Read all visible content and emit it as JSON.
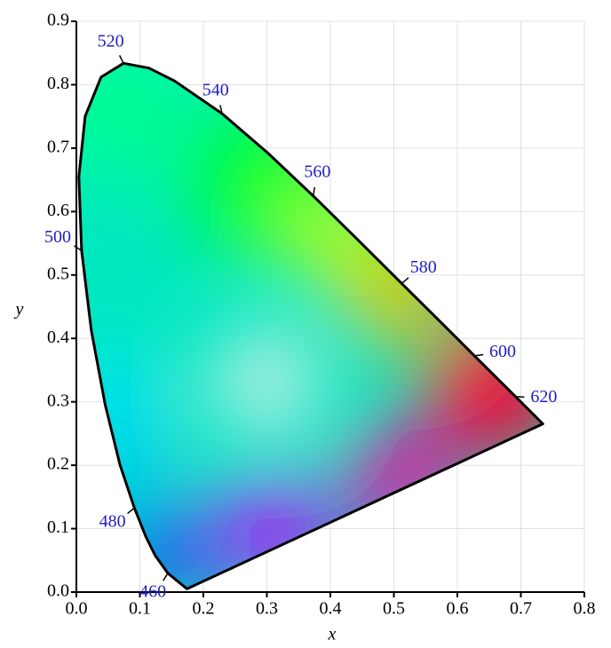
{
  "chart_data": {
    "type": "line",
    "x": [
      0.1741,
      0.144,
      0.1241,
      0.1096,
      0.0913,
      0.0687,
      0.0454,
      0.0235,
      0.0082,
      0.0039,
      0.0139,
      0.0389,
      0.0743,
      0.1142,
      0.1547,
      0.2296,
      0.3016,
      0.3731,
      0.4441,
      0.5125,
      0.5752,
      0.627,
      0.6915,
      0.719,
      0.7347
    ],
    "values": [
      0.005,
      0.0297,
      0.0578,
      0.0868,
      0.1327,
      0.2007,
      0.295,
      0.4127,
      0.5384,
      0.6548,
      0.7502,
      0.812,
      0.8338,
      0.8262,
      0.8059,
      0.7543,
      0.6923,
      0.6245,
      0.5547,
      0.4866,
      0.4242,
      0.3725,
      0.3083,
      0.2809,
      0.2653
    ],
    "color": "#000000",
    "annotations": [
      {
        "text": "460",
        "x": 0.144,
        "y": 0.0297
      },
      {
        "text": "480",
        "x": 0.0913,
        "y": 0.1327
      },
      {
        "text": "500",
        "x": 0.0082,
        "y": 0.5384
      },
      {
        "text": "520",
        "x": 0.0743,
        "y": 0.8338
      },
      {
        "text": "540",
        "x": 0.2296,
        "y": 0.7543
      },
      {
        "text": "560",
        "x": 0.3731,
        "y": 0.6245
      },
      {
        "text": "580",
        "x": 0.5125,
        "y": 0.4866
      },
      {
        "text": "600",
        "x": 0.627,
        "y": 0.3725
      },
      {
        "text": "620",
        "x": 0.6915,
        "y": 0.3083
      }
    ],
    "annotation_color": "#2020c0",
    "x_label": "x",
    "y_label": "y",
    "xlim": [
      0,
      0.8
    ],
    "ylim": [
      0,
      0.9
    ],
    "xticks": [
      {
        "value": 0,
        "label": "0.0"
      },
      0.1,
      0.2,
      0.3,
      0.4,
      0.5,
      0.6,
      0.7,
      0.8
    ],
    "yticks": [
      {
        "value": 0,
        "label": "0.0"
      },
      0.1,
      0.2,
      0.3,
      0.4,
      0.5,
      0.6,
      0.7,
      0.8,
      0.9
    ],
    "grid": true
  }
}
